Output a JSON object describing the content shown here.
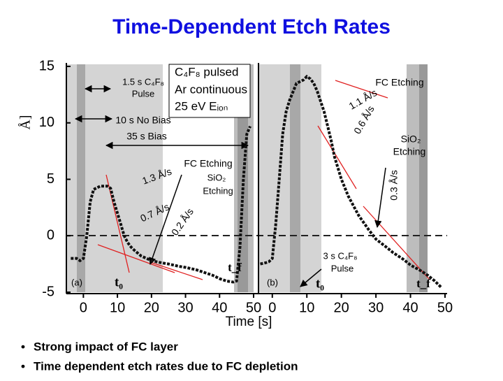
{
  "title": "Time-Dependent Etch Rates",
  "chart_data": [
    {
      "type": "line",
      "label": "(a)",
      "ylabel": "Å]",
      "xlim": [
        -5,
        50
      ],
      "xticks": [
        0,
        10,
        20,
        30,
        40,
        50
      ],
      "ylim": [
        -5,
        15
      ],
      "yticks": [
        -5,
        0,
        5,
        10,
        15
      ],
      "series": [
        {
          "color": "#111111",
          "x": [
            -3.7,
            -2,
            -1,
            0,
            1,
            2,
            3,
            5,
            7,
            8,
            9,
            10,
            11,
            12,
            13,
            14,
            15,
            17,
            20,
            23,
            25,
            28,
            30,
            33,
            35,
            38,
            40,
            42,
            44,
            45,
            46,
            47,
            48,
            49
          ],
          "values": [
            -2,
            -2,
            -2.2,
            -2,
            0,
            3,
            4.1,
            4.4,
            4.4,
            4.2,
            3,
            2,
            1,
            0,
            -0.6,
            -1,
            -1.3,
            -1.8,
            -2.2,
            -2.4,
            -2.5,
            -2.7,
            -2.8,
            -3,
            -3.2,
            -3.5,
            -3.8,
            -4,
            -4.1,
            -4,
            -1,
            5,
            9,
            9.7
          ]
        }
      ]
    },
    {
      "type": "line",
      "label": "(b)",
      "xlabel": "Time [s]",
      "xlim": [
        -4,
        50
      ],
      "xticks": [
        0,
        10,
        20,
        30,
        40,
        50
      ],
      "ylim": [
        -5,
        15
      ],
      "series": [
        {
          "color": "#111111",
          "x": [
            -3.5,
            -2,
            -1,
            0,
            1,
            2,
            3,
            4,
            5,
            7,
            9,
            10,
            11,
            12,
            13,
            15,
            17,
            18,
            20,
            22,
            25,
            28,
            30,
            33,
            35,
            38,
            40,
            43,
            45,
            47,
            48,
            49
          ],
          "values": [
            -2.5,
            -2.4,
            -2.3,
            -2,
            1,
            5,
            9,
            11,
            12,
            13.5,
            13.8,
            14.1,
            13.9,
            13.5,
            12.8,
            11,
            8.5,
            7,
            5,
            3.5,
            1.8,
            0.5,
            -0.3,
            -1,
            -1.5,
            -2.1,
            -2.6,
            -3.1,
            -3.5,
            -4,
            -4.3,
            -4.6
          ]
        }
      ]
    }
  ],
  "annotations": [
    "1.5 s C₄F₈",
    "Pulse",
    "C₄F₈ pulsed",
    "Ar continuous",
    "25 eV Eᵢₒₙ",
    "10 s No Bias",
    "35 s Bias",
    "FC Etching",
    "SiO₂",
    "Etching",
    "1.3 Å/s",
    "0.7 Å/s",
    "0.2 Å/s",
    "FC Etching",
    "1.1 Å/s",
    "0.6 Å/s",
    "SiO₂",
    "Etching",
    "0.3 Å/s",
    "t₀",
    "t_f",
    "(a)",
    "(b)",
    "t₀",
    "3 s C₄F₈",
    "Pulse",
    "t_f"
  ],
  "bullets": [
    "Strong impact of FC layer",
    "Time dependent etch rates due to FC depletion"
  ]
}
